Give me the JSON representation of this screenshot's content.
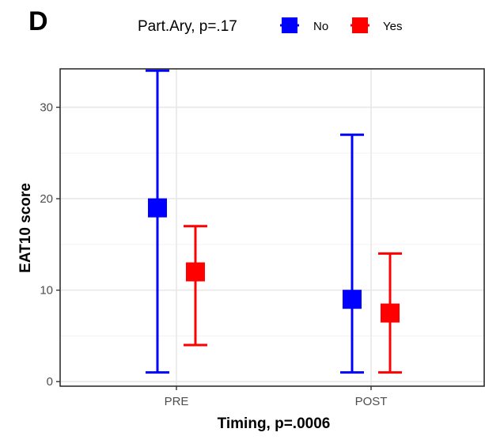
{
  "chart_data": {
    "type": "errorbar",
    "panel_label": "D",
    "title": "",
    "xlabel": "Timing, p=.0006",
    "ylabel": "EAT10 score",
    "ylim": [
      -0.5,
      34.2
    ],
    "yticks": [
      0,
      10,
      20,
      30
    ],
    "categories": [
      "PRE",
      "POST"
    ],
    "legend": {
      "title": "Part.Ary, p=.17",
      "position": "top"
    },
    "grid": true,
    "series": [
      {
        "name": "No",
        "color": "#0000ff",
        "values": [
          19,
          9
        ],
        "lower": [
          1,
          1
        ],
        "upper": [
          34,
          27
        ]
      },
      {
        "name": "Yes",
        "color": "#ff0000",
        "values": [
          12,
          7.5
        ],
        "lower": [
          4,
          1
        ],
        "upper": [
          17,
          14
        ]
      }
    ]
  }
}
